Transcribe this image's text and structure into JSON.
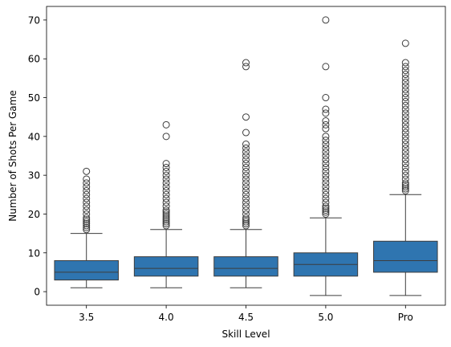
{
  "chart_data": {
    "type": "box",
    "xlabel": "Skill Level",
    "ylabel": "Number of Shots Per Game",
    "ylim": [
      -3.5,
      73.5
    ],
    "yticks": [
      0,
      10,
      20,
      30,
      40,
      50,
      60,
      70
    ],
    "grid": false,
    "box_color": "#2f75b0",
    "line_color": "#3d3d3d",
    "categories": [
      "3.5",
      "4.0",
      "4.5",
      "5.0",
      "Pro"
    ],
    "boxes": [
      {
        "label": "3.5",
        "whisker_low": 1,
        "q1": 3,
        "median": 5,
        "q3": 8,
        "whisker_high": 15,
        "outliers": [
          16,
          16.5,
          17,
          17.5,
          18,
          18.5,
          19,
          20,
          21,
          22,
          23,
          24,
          25,
          26,
          27,
          28,
          29,
          31
        ]
      },
      {
        "label": "4.0",
        "whisker_low": 1,
        "q1": 4,
        "median": 6,
        "q3": 9,
        "whisker_high": 16,
        "outliers": [
          17,
          17.5,
          18,
          18.5,
          19,
          19.5,
          20,
          20.5,
          21,
          22,
          23,
          24,
          25,
          26,
          27,
          28,
          29,
          30,
          31,
          32,
          33,
          40,
          43
        ]
      },
      {
        "label": "4.5",
        "whisker_low": 1,
        "q1": 4,
        "median": 6,
        "q3": 9,
        "whisker_high": 16,
        "outliers": [
          17,
          17.5,
          18,
          18.5,
          19,
          20,
          21,
          22,
          23,
          24,
          25,
          26,
          27,
          28,
          29,
          30,
          31,
          32,
          33,
          34,
          35,
          36,
          37,
          38,
          41,
          45,
          58,
          59
        ]
      },
      {
        "label": "5.0",
        "whisker_low": -1,
        "q1": 4,
        "median": 7,
        "q3": 10,
        "whisker_high": 19,
        "outliers": [
          20,
          20.5,
          21,
          21.5,
          22,
          23,
          24,
          25,
          26,
          27,
          28,
          29,
          30,
          31,
          32,
          33,
          34,
          35,
          36,
          37,
          38,
          39,
          40,
          42,
          43,
          44,
          46,
          47,
          50,
          58,
          70
        ]
      },
      {
        "label": "Pro",
        "whisker_low": -1,
        "q1": 5,
        "median": 8,
        "q3": 13,
        "whisker_high": 25,
        "outliers": [
          26,
          26.5,
          27,
          27.5,
          28,
          29,
          30,
          31,
          32,
          33,
          34,
          35,
          36,
          37,
          38,
          39,
          40,
          41,
          42,
          43,
          44,
          45,
          46,
          47,
          48,
          49,
          50,
          51,
          52,
          53,
          54,
          55,
          56,
          57,
          58,
          59,
          64
        ]
      }
    ]
  }
}
